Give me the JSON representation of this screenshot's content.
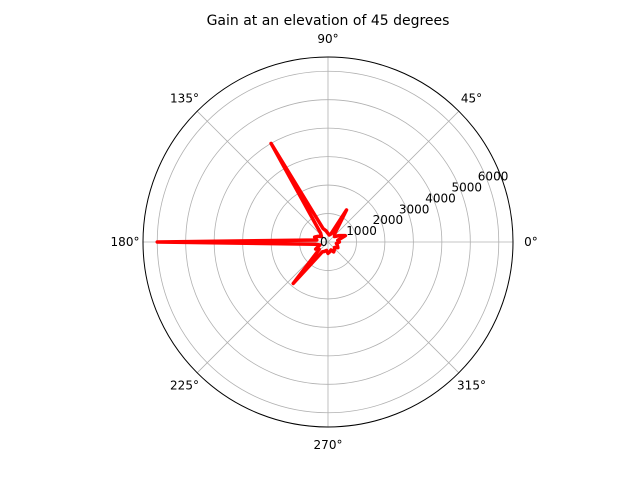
{
  "chart_data": {
    "type": "line",
    "projection": "polar",
    "title": "Gain at an elevation of 45 degrees",
    "angle_ticks_deg": [
      0,
      45,
      90,
      135,
      180,
      225,
      270,
      315
    ],
    "angle_tick_labels": [
      "0°",
      "45°",
      "90°",
      "135°",
      "180°",
      "225°",
      "270°",
      "315°"
    ],
    "radial_ticks": [
      0,
      1000,
      2000,
      3000,
      4000,
      5000,
      6000
    ],
    "radial_tick_labels": [
      "0",
      "1000",
      "2000",
      "3000",
      "4000",
      "5000",
      "6000"
    ],
    "radial_label_angle_deg": 22.5,
    "rlim": [
      0,
      6500
    ],
    "grid": true,
    "series": [
      {
        "color": "#ff0000",
        "theta_deg": [
          0,
          10,
          20,
          30,
          40,
          50,
          60,
          70,
          80,
          90,
          100,
          110,
          120,
          130,
          140,
          150,
          160,
          170,
          180,
          190,
          200,
          210,
          220,
          230,
          240,
          250,
          260,
          270,
          280,
          290,
          300,
          310,
          320,
          330,
          340,
          350,
          360
        ],
        "r": [
          400,
          350,
          650,
          450,
          300,
          350,
          1300,
          300,
          250,
          300,
          400,
          500,
          4000,
          400,
          300,
          400,
          500,
          400,
          6000,
          450,
          300,
          500,
          400,
          1900,
          400,
          350,
          300,
          400,
          350,
          300,
          400,
          350,
          300,
          400,
          350,
          300,
          400
        ]
      }
    ]
  }
}
